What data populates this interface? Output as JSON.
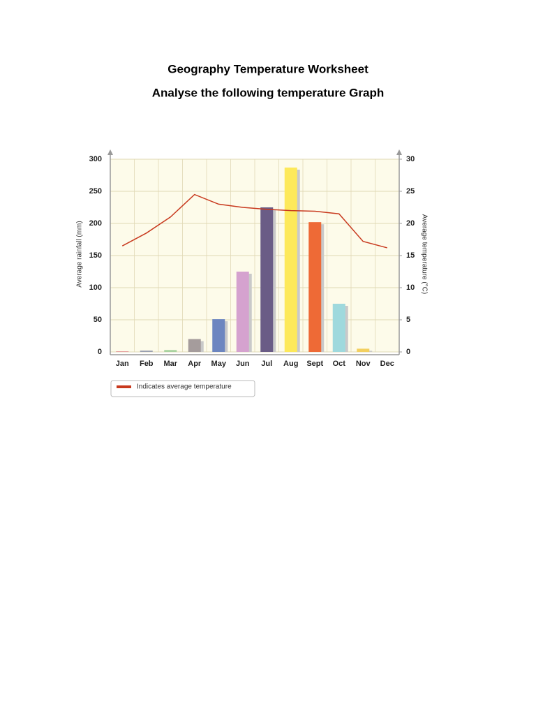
{
  "header": {
    "title": "Geography Temperature Worksheet",
    "subtitle": "Analyse the following temperature Graph"
  },
  "chart_data": {
    "type": "bar",
    "categories": [
      "Jan",
      "Feb",
      "Mar",
      "Apr",
      "May",
      "Jun",
      "Jul",
      "Aug",
      "Sept",
      "Oct",
      "Nov",
      "Dec"
    ],
    "series": [
      {
        "type": "bar",
        "values": [
          1,
          2,
          3,
          20,
          51,
          125,
          225,
          287,
          202,
          75,
          5,
          0
        ],
        "colors": [
          "#e49a9a",
          "#9aa0b0",
          "#a9d3a0",
          "#a59c9c",
          "#6d86c0",
          "#d5a2cf",
          "#6a5c86",
          "#fde95a",
          "#ee6a36",
          "#9fd9dd",
          "#f3d060",
          "#cccccc"
        ]
      },
      {
        "type": "line",
        "name": "Indicates average temperature",
        "axis": "y2",
        "color": "#c8391e",
        "values": [
          16.5,
          18.5,
          21,
          24.5,
          23,
          22.5,
          22.2,
          22,
          21.9,
          21.5,
          17.2,
          16.2
        ]
      }
    ],
    "ylabel": "Average rainfall (mm)",
    "y2label": "Average temperature (°C)",
    "ylim": [
      0,
      300
    ],
    "yticks": [
      0,
      50,
      100,
      150,
      200,
      250,
      300
    ],
    "y2lim": [
      0,
      30
    ],
    "y2ticks": [
      0,
      5,
      10,
      15,
      20,
      25,
      30
    ],
    "grid": true
  }
}
